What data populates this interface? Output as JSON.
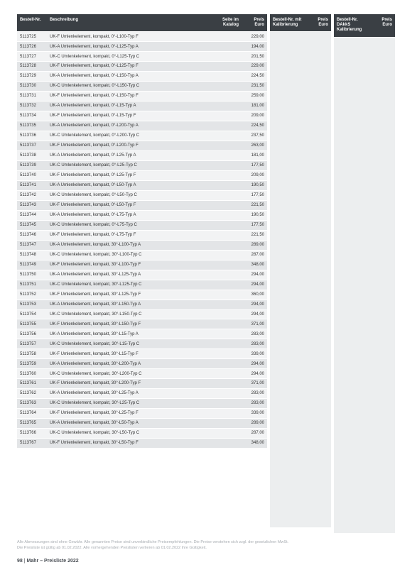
{
  "table": {
    "headers": {
      "bestell": "Bestell-Nr.",
      "beschreibung": "Beschreibung",
      "seite": "Seite im Katalog",
      "preis": "Preis Euro",
      "kalib_nr": "Bestell-Nr. mit Kalibrierung",
      "kalib_preis": "Preis Euro",
      "dakks_nr": "Bestell-Nr. DAkkS Kalibrierung",
      "dakks_preis": "Preis Euro"
    },
    "rows": [
      {
        "nr": "5113725",
        "desc": "UK-F Umlenkelement, kompakt, 0°-L100-Typ F",
        "seite": "",
        "preis": "229,00"
      },
      {
        "nr": "5113726",
        "desc": "UK-A Umlenkelement, kompakt, 0°-L125-Typ A",
        "seite": "",
        "preis": "194,00"
      },
      {
        "nr": "5113727",
        "desc": "UK-C Umlenkelement, kompakt, 0°-L125-Typ C",
        "seite": "",
        "preis": "201,50"
      },
      {
        "nr": "5113728",
        "desc": "UK-F Umlenkelement, kompakt, 0°-L125-Typ F",
        "seite": "",
        "preis": "229,00"
      },
      {
        "nr": "5113729",
        "desc": "UK-A Umlenkelement, kompakt, 0°-L150-Typ A",
        "seite": "",
        "preis": "224,50"
      },
      {
        "nr": "5113730",
        "desc": "UK-C Umlenkelement, kompakt, 0°-L150-Typ C",
        "seite": "",
        "preis": "231,50"
      },
      {
        "nr": "5113731",
        "desc": "UK-F Umlenkelement, kompakt, 0°-L150-Typ F",
        "seite": "",
        "preis": "259,00"
      },
      {
        "nr": "5113732",
        "desc": "UK-A Umlenkelement, kompakt, 0°-L15-Typ A",
        "seite": "",
        "preis": "181,00"
      },
      {
        "nr": "5113734",
        "desc": "UK-F Umlenkelement, kompakt, 0°-L15-Typ F",
        "seite": "",
        "preis": "209,00"
      },
      {
        "nr": "5113735",
        "desc": "UK-A Umlenkelement, kompakt, 0°-L200-Typ A",
        "seite": "",
        "preis": "224,50"
      },
      {
        "nr": "5113736",
        "desc": "UK-C Umlenkelement, kompakt, 0°-L200-Typ C",
        "seite": "",
        "preis": "237,50"
      },
      {
        "nr": "5113737",
        "desc": "UK-F Umlenkelement, kompakt, 0°-L200-Typ F",
        "seite": "",
        "preis": "263,00"
      },
      {
        "nr": "5113738",
        "desc": "UK-A Umlenkelement, kompakt, 0°-L25-Typ A",
        "seite": "",
        "preis": "181,00"
      },
      {
        "nr": "5113739",
        "desc": "UK-C Umlenkelement, kompakt, 0°-L25-Typ C",
        "seite": "",
        "preis": "177,50"
      },
      {
        "nr": "5113740",
        "desc": "UK-F Umlenkelement, kompakt, 0°-L25-Typ F",
        "seite": "",
        "preis": "209,00"
      },
      {
        "nr": "5113741",
        "desc": "UK-A Umlenkelement, kompakt, 0°-L50-Typ A",
        "seite": "",
        "preis": "190,50"
      },
      {
        "nr": "5113742",
        "desc": "UK-C Umlenkelement, kompakt, 0°-L50-Typ C",
        "seite": "",
        "preis": "177,50"
      },
      {
        "nr": "5113743",
        "desc": "UK-F Umlenkelement, kompakt, 0°-L50-Typ F",
        "seite": "",
        "preis": "221,50"
      },
      {
        "nr": "5113744",
        "desc": "UK-A Umlenkelement, kompakt, 0°-L75-Typ A",
        "seite": "",
        "preis": "190,50"
      },
      {
        "nr": "5113745",
        "desc": "UK-C Umlenkelement, kompakt, 0°-L75-Typ C",
        "seite": "",
        "preis": "177,50"
      },
      {
        "nr": "5113746",
        "desc": "UK-F Umlenkelement, kompakt, 0°-L75-Typ F",
        "seite": "",
        "preis": "221,50"
      },
      {
        "nr": "5113747",
        "desc": "UK-A Umlenkelement, kompakt, 30°-L100-Typ A",
        "seite": "",
        "preis": "289,00"
      },
      {
        "nr": "5113748",
        "desc": "UK-C Umlenkelement, kompakt, 30°-L100-Typ C",
        "seite": "",
        "preis": "287,00"
      },
      {
        "nr": "5113749",
        "desc": "UK-F Umlenkelement, kompakt, 30°-L100-Typ F",
        "seite": "",
        "preis": "348,00"
      },
      {
        "nr": "5113750",
        "desc": "UK-A Umlenkelement, kompakt, 30°-L125-Typ A",
        "seite": "",
        "preis": "294,00"
      },
      {
        "nr": "5113751",
        "desc": "UK-C Umlenkelement, kompakt, 30°-L125-Typ C",
        "seite": "",
        "preis": "294,00"
      },
      {
        "nr": "5113752",
        "desc": "UK-F Umlenkelement, kompakt, 30°-L125-Typ F",
        "seite": "",
        "preis": "360,00"
      },
      {
        "nr": "5113753",
        "desc": "UK-A Umlenkelement, kompakt, 30°-L150-Typ A",
        "seite": "",
        "preis": "294,00"
      },
      {
        "nr": "5113754",
        "desc": "UK-C Umlenkelement, kompakt, 30°-L150-Typ C",
        "seite": "",
        "preis": "294,00"
      },
      {
        "nr": "5113755",
        "desc": "UK-F Umlenkelement, kompakt, 30°-L150-Typ F",
        "seite": "",
        "preis": "371,00"
      },
      {
        "nr": "5113756",
        "desc": "UK-A Umlenkelement, kompakt, 30°-L15-Typ A",
        "seite": "",
        "preis": "283,00"
      },
      {
        "nr": "5113757",
        "desc": "UK-C Umlenkelement, kompakt, 30°-L15-Typ C",
        "seite": "",
        "preis": "283,00"
      },
      {
        "nr": "5113758",
        "desc": "UK-F Umlenkelement, kompakt, 30°-L15-Typ F",
        "seite": "",
        "preis": "339,00"
      },
      {
        "nr": "5113759",
        "desc": "UK-A Umlenkelement, kompakt, 30°-L200-Typ A",
        "seite": "",
        "preis": "294,00"
      },
      {
        "nr": "5113760",
        "desc": "UK-C Umlenkelement, kompakt, 30°-L200-Typ C",
        "seite": "",
        "preis": "294,00"
      },
      {
        "nr": "5113761",
        "desc": "UK-F Umlenkelement, kompakt, 30°-L200-Typ F",
        "seite": "",
        "preis": "371,00"
      },
      {
        "nr": "5113762",
        "desc": "UK-A Umlenkelement, kompakt, 30°-L25-Typ A",
        "seite": "",
        "preis": "283,00"
      },
      {
        "nr": "5113763",
        "desc": "UK-C Umlenkelement, kompakt, 30°-L25-Typ C",
        "seite": "",
        "preis": "283,00"
      },
      {
        "nr": "5113764",
        "desc": "UK-F Umlenkelement, kompakt, 30°-L25-Typ F",
        "seite": "",
        "preis": "339,00"
      },
      {
        "nr": "5113765",
        "desc": "UK-A Umlenkelement, kompakt, 30°-L50-Typ A",
        "seite": "",
        "preis": "289,00"
      },
      {
        "nr": "5113766",
        "desc": "UK-C Umlenkelement, kompakt, 30°-L50-Typ C",
        "seite": "",
        "preis": "287,00"
      },
      {
        "nr": "5113767",
        "desc": "UK-F Umlenkelement, kompakt, 30°-L50-Typ F",
        "seite": "",
        "preis": "348,00"
      }
    ]
  },
  "footer": {
    "line1": "Alle Abmessungen sind ohne Gewähr. Alle genannten Preise sind unverbindliche Preisempfehlungen. Die Preise verstehen sich zzgl. der gesetzlichen MwSt.",
    "line2": "Die Preisliste ist gültig ab 01.02.2022. Alle vorhergehenden Preislisten verlieren ab 01.02.2022 ihre Gültigkeit.",
    "page_num": "98",
    "page_sep": "|",
    "page_label": "Mahr – Preisliste 2022"
  },
  "colors": {
    "header_bg": "#3a3f44",
    "row_odd": "#f2f3f4",
    "row_even": "#e3e5e7",
    "side_bg": "#eceeef",
    "text": "#333333",
    "footer_text": "#a8adb2"
  }
}
